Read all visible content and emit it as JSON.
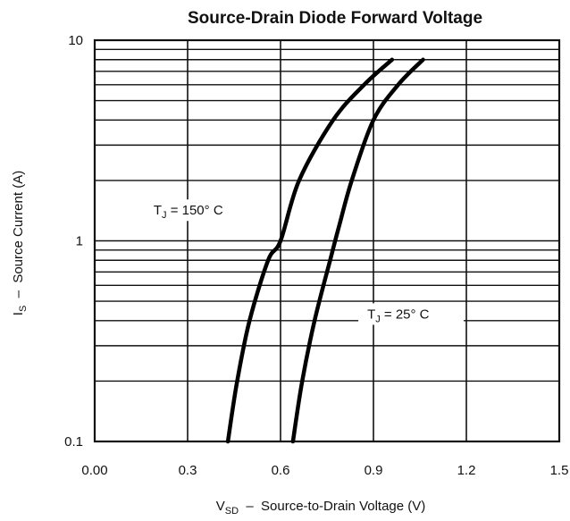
{
  "chart_data": {
    "type": "line",
    "title": "Source-Drain Diode Forward Voltage",
    "xlabel": {
      "main": "V",
      "sub": "SD",
      "rest": "  –  Source-to-Drain Voltage (V)"
    },
    "ylabel": {
      "main": "I",
      "sub": "S",
      "rest": "  –  Source Current (A)"
    },
    "xlim": [
      0,
      1.5
    ],
    "ylim": [
      0.1,
      10
    ],
    "yscale": "log",
    "grid": true,
    "x_ticks": [
      {
        "value": 0.0,
        "label": "0.00"
      },
      {
        "value": 0.3,
        "label": "0.3"
      },
      {
        "value": 0.6,
        "label": "0.6"
      },
      {
        "value": 0.9,
        "label": "0.9"
      },
      {
        "value": 1.2,
        "label": "1.2"
      },
      {
        "value": 1.5,
        "label": "1.5"
      }
    ],
    "y_ticks": [
      {
        "value": 0.1,
        "label": "0.1"
      },
      {
        "value": 1,
        "label": "1"
      },
      {
        "value": 10,
        "label": "10"
      }
    ],
    "series": [
      {
        "label": {
          "main": "T",
          "sub": "J",
          "rest": " = 150° C"
        },
        "points": [
          [
            0.43,
            0.1
          ],
          [
            0.46,
            0.2
          ],
          [
            0.5,
            0.4
          ],
          [
            0.56,
            0.8
          ],
          [
            0.6,
            1.0
          ],
          [
            0.66,
            2.0
          ],
          [
            0.77,
            4.0
          ],
          [
            0.87,
            6.0
          ],
          [
            0.96,
            8.0
          ]
        ]
      },
      {
        "label": {
          "main": "T",
          "sub": "J",
          "rest": " = 25° C"
        },
        "points": [
          [
            0.64,
            0.1
          ],
          [
            0.67,
            0.2
          ],
          [
            0.71,
            0.4
          ],
          [
            0.76,
            0.8
          ],
          [
            0.79,
            1.2
          ],
          [
            0.83,
            2.0
          ],
          [
            0.9,
            4.0
          ],
          [
            0.98,
            6.0
          ],
          [
            1.06,
            8.0
          ]
        ]
      }
    ]
  }
}
